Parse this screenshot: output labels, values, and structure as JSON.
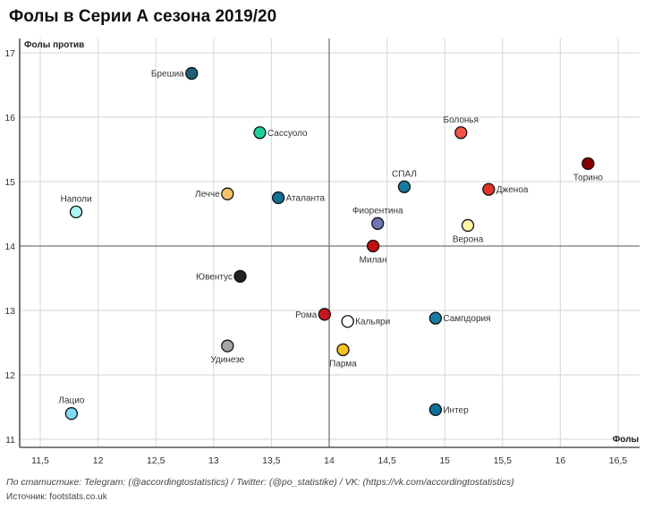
{
  "title": "Фолы в Серии А сезона 2019/20",
  "footer": {
    "credits": "По статистике: Telegram: (@accordingtostatistics) / Twitter: (@po_statistike) / VK: (https://vk.com/accordingtostatistics)",
    "source": "Источник: footstats.co.uk"
  },
  "chart_data": {
    "type": "scatter",
    "title": "Фолы в Серии А сезона 2019/20",
    "xlabel": "Фолы",
    "ylabel": "Фолы против",
    "xlim": [
      11.3,
      16.7
    ],
    "ylim": [
      10.9,
      17.2
    ],
    "xticks": [
      11.5,
      12,
      12.5,
      13,
      13.5,
      14,
      14.5,
      15,
      15.5,
      16,
      16.5
    ],
    "xtick_labels": [
      "11,5",
      "12",
      "12,5",
      "13",
      "13,5",
      "14",
      "14,5",
      "15",
      "15,5",
      "16",
      "16,5"
    ],
    "yticks": [
      11,
      12,
      13,
      14,
      15,
      16,
      17
    ],
    "ytick_labels": [
      "11",
      "12",
      "13",
      "14",
      "15",
      "16",
      "17"
    ],
    "reference_lines": {
      "x": 14,
      "y": 14
    },
    "grid": true,
    "points": [
      {
        "team": "Брешиа",
        "x": 12.81,
        "y": 16.68,
        "color": "#1f5f7a",
        "label_pos": "left"
      },
      {
        "team": "Сассуоло",
        "x": 13.4,
        "y": 15.76,
        "color": "#1fcf9a",
        "label_pos": "right"
      },
      {
        "team": "Болонья",
        "x": 15.14,
        "y": 15.76,
        "color": "#f05545",
        "label_pos": "top"
      },
      {
        "team": "Торино",
        "x": 16.24,
        "y": 15.28,
        "color": "#8b0000",
        "label_pos": "bottom"
      },
      {
        "team": "СПАЛ",
        "x": 14.65,
        "y": 14.92,
        "color": "#1a7a9c",
        "label_pos": "top"
      },
      {
        "team": "Дженоа",
        "x": 15.38,
        "y": 14.88,
        "color": "#e0352b",
        "label_pos": "right"
      },
      {
        "team": "Лечче",
        "x": 13.12,
        "y": 14.81,
        "color": "#f5c46a",
        "label_pos": "left"
      },
      {
        "team": "Аталанта",
        "x": 13.56,
        "y": 14.75,
        "color": "#0f6f94",
        "label_pos": "right"
      },
      {
        "team": "Наполи",
        "x": 11.81,
        "y": 14.53,
        "color": "#aef4f7",
        "label_pos": "top"
      },
      {
        "team": "Фиорентина",
        "x": 14.42,
        "y": 14.35,
        "color": "#6c76b2",
        "label_pos": "top"
      },
      {
        "team": "Верона",
        "x": 15.2,
        "y": 14.32,
        "color": "#fff5a8",
        "label_pos": "bottom"
      },
      {
        "team": "Милан",
        "x": 14.38,
        "y": 14.0,
        "color": "#c40e0e",
        "label_pos": "bottom"
      },
      {
        "team": "Ювентус",
        "x": 13.23,
        "y": 13.53,
        "color": "#222222",
        "label_pos": "left"
      },
      {
        "team": "Рома",
        "x": 13.96,
        "y": 12.94,
        "color": "#c8161d",
        "label_pos": "left"
      },
      {
        "team": "Сампдория",
        "x": 14.92,
        "y": 12.88,
        "color": "#1a7aa0",
        "label_pos": "right"
      },
      {
        "team": "Кальяри",
        "x": 14.16,
        "y": 12.83,
        "color": "#ffffff",
        "label_pos": "right"
      },
      {
        "team": "Удинезе",
        "x": 13.12,
        "y": 12.45,
        "color": "#a5a5a5",
        "label_pos": "bottom"
      },
      {
        "team": "Парма",
        "x": 14.12,
        "y": 12.39,
        "color": "#f7c21c",
        "label_pos": "bottom"
      },
      {
        "team": "Интер",
        "x": 14.92,
        "y": 11.46,
        "color": "#0f6f9c",
        "label_pos": "right"
      },
      {
        "team": "Лацио",
        "x": 11.77,
        "y": 11.4,
        "color": "#7fdcf7",
        "label_pos": "top"
      }
    ]
  }
}
